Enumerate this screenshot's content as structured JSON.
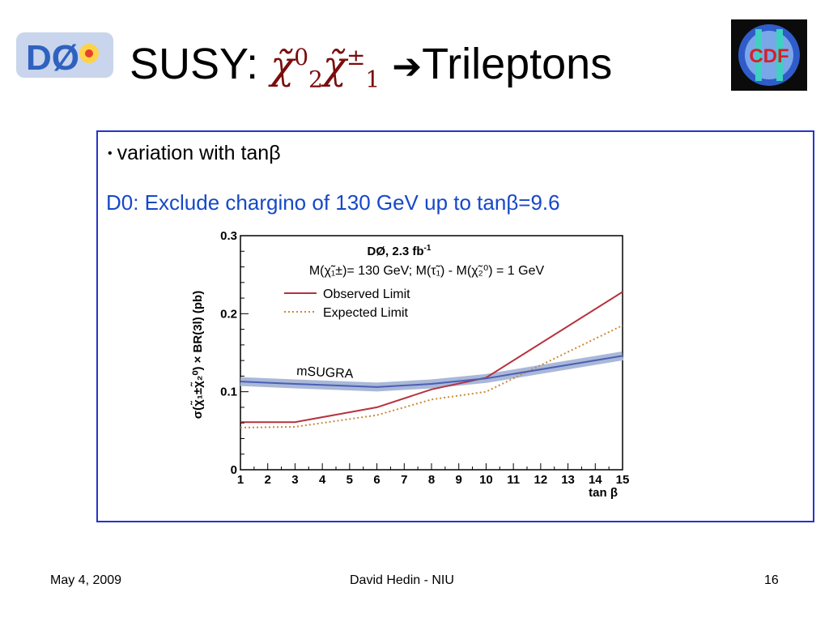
{
  "slide": {
    "title_prefix": "SUSY:",
    "title_particle_a": "χ̃",
    "title_particle_a_sup": "0",
    "title_particle_a_sub": "2",
    "title_particle_b": "χ̃",
    "title_particle_b_sup": "±",
    "title_particle_b_sub": "1",
    "title_arrow": "➔",
    "title_suffix": "Trileptons",
    "bullet": "variation with tanβ",
    "subheading": "D0:  Exclude chargino of 130 GeV up to tanβ=9.6",
    "logos": {
      "left": "DØ",
      "right": "CDF"
    },
    "footer": {
      "date": "May 4, 2009",
      "author": "David Hedin - NIU",
      "page": "16"
    },
    "colors": {
      "border": "#2535c8",
      "subheading": "#1648c8",
      "observed": "#b5323e",
      "expected": "#c98a3a",
      "msugra": "#4a5fb5",
      "msugra_band": "#aab8d8"
    }
  },
  "chart_data": {
    "type": "line",
    "experiment_label": "DØ, 2.3 fb",
    "experiment_label_sup": "-1",
    "condition_label": "M(χ̃₁±)= 130 GeV; M(τ̃₁) - M(χ̃₂⁰) = 1 GeV",
    "ylabel": "σ(χ̃₁±χ̃₂⁰) × BR(3l) (pb)",
    "xlabel": "tan β",
    "xlim": [
      1,
      15
    ],
    "ylim": [
      0,
      0.3
    ],
    "x_ticks": [
      "1",
      "2",
      "3",
      "4",
      "5",
      "6",
      "7",
      "8",
      "9",
      "10",
      "11",
      "12",
      "13",
      "14",
      "15"
    ],
    "y_ticks": [
      "0",
      "0.1",
      "0.2",
      "0.3"
    ],
    "legend_position": "top",
    "series": [
      {
        "name": "Observed Limit",
        "style": "solid",
        "color": "#b5323e",
        "x": [
          1,
          3,
          6,
          8,
          10,
          15
        ],
        "y": [
          0.061,
          0.061,
          0.08,
          0.103,
          0.118,
          0.228
        ]
      },
      {
        "name": "Expected Limit",
        "style": "dotted",
        "color": "#c98a3a",
        "x": [
          1,
          3,
          6,
          8,
          10,
          15
        ],
        "y": [
          0.054,
          0.055,
          0.07,
          0.09,
          0.1,
          0.185
        ]
      },
      {
        "name": "mSUGRA",
        "style": "band",
        "color": "#4a5fb5",
        "x": [
          1,
          3,
          6,
          8,
          10,
          15
        ],
        "y": [
          0.113,
          0.11,
          0.106,
          0.11,
          0.117,
          0.146
        ]
      }
    ]
  }
}
